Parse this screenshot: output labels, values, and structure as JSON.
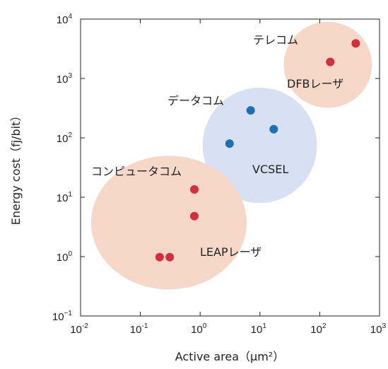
{
  "chart_data": {
    "type": "scatter",
    "xlabel": "Active area（μm²）",
    "ylabel": "Energy cost（fj/bit）",
    "xscale": "log",
    "yscale": "log",
    "xlim": [
      0.01,
      1000
    ],
    "ylim": [
      0.1,
      10000
    ],
    "grid": false,
    "x_ticks": [
      {
        "value": 0.01,
        "base": "10",
        "exp": "-2"
      },
      {
        "value": 0.1,
        "base": "10",
        "exp": "-1"
      },
      {
        "value": 1,
        "base": "10",
        "exp": "0"
      },
      {
        "value": 10,
        "base": "10",
        "exp": "1"
      },
      {
        "value": 100,
        "base": "10",
        "exp": "2"
      },
      {
        "value": 1000,
        "base": "10",
        "exp": "3"
      }
    ],
    "y_ticks": [
      {
        "value": 0.1,
        "base": "10",
        "exp": "−1"
      },
      {
        "value": 1,
        "base": "10",
        "exp": "0"
      },
      {
        "value": 10,
        "base": "10",
        "exp": "1"
      },
      {
        "value": 100,
        "base": "10",
        "exp": "2"
      },
      {
        "value": 1000,
        "base": "10",
        "exp": "3"
      },
      {
        "value": 10000,
        "base": "10",
        "exp": "4"
      }
    ],
    "groups": [
      {
        "key": "telecom",
        "label": "テレコム",
        "color": "#d32f3a",
        "region_color": "#f7d8c8",
        "region": {
          "x_range": [
            25,
            750
          ],
          "y_range": [
            320,
            9000
          ]
        },
        "points": [
          {
            "x": 150,
            "y": 1900
          },
          {
            "x": 400,
            "y": 3900
          }
        ]
      },
      {
        "key": "dfb",
        "label": "DFBレーザ",
        "color": "#d32f3a",
        "points": []
      },
      {
        "key": "datacom",
        "label": "データコム",
        "color": "#1f6fb5",
        "region_color": "#d7e1f3",
        "region": {
          "x_range": [
            1.1,
            90
          ],
          "y_range": [
            8,
            700
          ]
        },
        "points": [
          {
            "x": 3.1,
            "y": 80
          },
          {
            "x": 7,
            "y": 290
          },
          {
            "x": 17,
            "y": 140
          }
        ]
      },
      {
        "key": "vcsel",
        "label": "VCSEL",
        "color": "#1f6fb5",
        "points": []
      },
      {
        "key": "computercom",
        "label": "コンピュータコム",
        "color": "#d32f3a",
        "region_color": "#f7d8c8",
        "region": {
          "x_range": [
            0.015,
            6
          ],
          "y_range": [
            0.28,
            50
          ]
        },
        "points": [
          {
            "x": 0.8,
            "y": 13.5
          },
          {
            "x": 0.8,
            "y": 4.8
          }
        ]
      },
      {
        "key": "leap",
        "label": "LEAPレーザ",
        "color": "#d32f3a",
        "points": [
          {
            "x": 0.21,
            "y": 0.98
          },
          {
            "x": 0.31,
            "y": 0.98
          }
        ]
      }
    ]
  }
}
